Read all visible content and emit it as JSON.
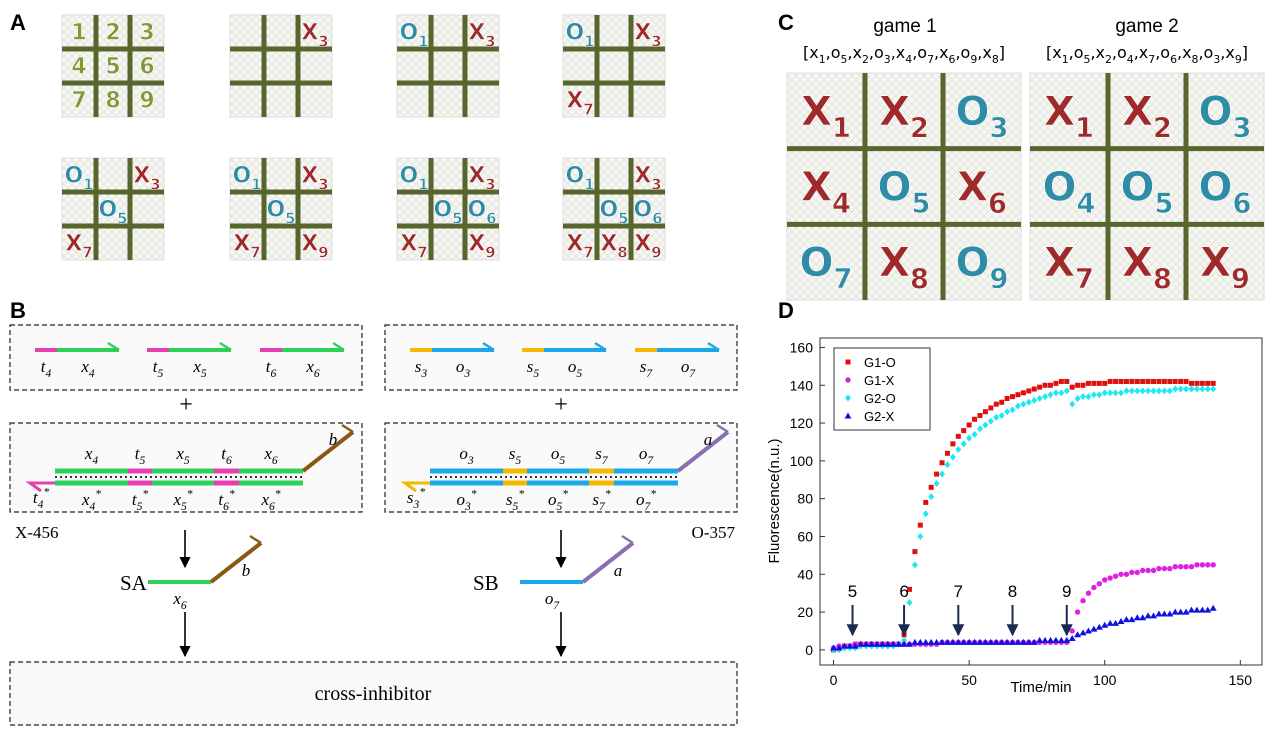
{
  "panel_labels": [
    "A",
    "B",
    "C",
    "D"
  ],
  "panel_a": {
    "boards": [
      [
        "1",
        "2",
        "3",
        "4",
        "5",
        "6",
        "7",
        "8",
        "9"
      ],
      [
        null,
        null,
        "X3",
        null,
        null,
        null,
        null,
        null,
        null
      ],
      [
        "O1",
        null,
        "X3",
        null,
        null,
        null,
        null,
        null,
        null
      ],
      [
        "O1",
        null,
        "X3",
        null,
        null,
        null,
        "X7",
        null,
        null
      ],
      [
        "O1",
        null,
        "X3",
        null,
        "O5",
        null,
        "X7",
        null,
        null
      ],
      [
        "O1",
        null,
        "X3",
        null,
        "O5",
        null,
        "X7",
        null,
        "X9"
      ],
      [
        "O1",
        null,
        "X3",
        null,
        "O5",
        "O6",
        "X7",
        null,
        "X9"
      ],
      [
        "O1",
        null,
        "X3",
        null,
        "O5",
        "O6",
        "X7",
        "X8",
        "X9"
      ]
    ]
  },
  "panel_b": {
    "left_strands": [
      {
        "toehold": "t4",
        "domain": "x4"
      },
      {
        "toehold": "t5",
        "domain": "x5"
      },
      {
        "toehold": "t6",
        "domain": "x6"
      }
    ],
    "right_strands": [
      {
        "toehold": "s3",
        "domain": "o3"
      },
      {
        "toehold": "s5",
        "domain": "o5"
      },
      {
        "toehold": "s7",
        "domain": "o7"
      }
    ],
    "plus": [
      "+",
      "+"
    ],
    "left_complex": {
      "top": [
        "x4",
        "t5",
        "x5",
        "t6",
        "x6"
      ],
      "bottom": [
        "t4*",
        "x4*",
        "t5*",
        "x5*",
        "t6*",
        "x6*"
      ],
      "tail": "b",
      "name": "X-456"
    },
    "right_complex": {
      "top": [
        "o3",
        "s5",
        "o5",
        "s7",
        "o7"
      ],
      "bottom": [
        "s3*",
        "o3*",
        "s5*",
        "o5*",
        "s7*",
        "o7*"
      ],
      "tail": "a",
      "name": "O-357"
    },
    "left_output": {
      "name": "SA",
      "domain": "x6",
      "tail": "b"
    },
    "right_output": {
      "name": "SB",
      "domain": "o7",
      "tail": "a"
    },
    "inhibitor": "cross-inhibitor"
  },
  "panel_c": {
    "games": [
      {
        "title": "game 1",
        "sequence": "[x1,o5,x2,o3,x4,o7,x6,o9,x8]",
        "board": [
          "X1",
          "X2",
          "O3",
          "X4",
          "O5",
          "X6",
          "O7",
          "X8",
          "O9"
        ]
      },
      {
        "title": "game 2",
        "sequence": "[x1,o5,x2,o4,x7,o6,x8,o3,x9]",
        "board": [
          "X1",
          "X2",
          "O3",
          "O4",
          "O5",
          "O6",
          "X7",
          "X8",
          "X9"
        ]
      }
    ]
  },
  "chart_data": {
    "type": "scatter",
    "xlabel": "Time/min",
    "ylabel": "Fluorescence(n.u.)",
    "xlim": [
      -5,
      158
    ],
    "ylim": [
      -8,
      165
    ],
    "xticks": [
      0,
      50,
      100,
      150
    ],
    "yticks": [
      0,
      20,
      40,
      60,
      80,
      100,
      120,
      140,
      160
    ],
    "legend": "upper left",
    "x": [
      0,
      2,
      4,
      6,
      8,
      10,
      12,
      14,
      16,
      18,
      20,
      22,
      24,
      26,
      28,
      30,
      32,
      34,
      36,
      38,
      40,
      42,
      44,
      46,
      48,
      50,
      52,
      54,
      56,
      58,
      60,
      62,
      64,
      66,
      68,
      70,
      72,
      74,
      76,
      78,
      80,
      82,
      84,
      86,
      88,
      90,
      92,
      94,
      96,
      98,
      100,
      102,
      104,
      106,
      108,
      110,
      112,
      114,
      116,
      118,
      120,
      122,
      124,
      126,
      128,
      130,
      132,
      134,
      136,
      138,
      140
    ],
    "series": [
      {
        "name": "G1-O",
        "color": "#e01010",
        "marker": "square",
        "values": [
          0,
          1,
          2,
          2,
          3,
          3,
          3,
          3,
          3,
          3,
          3,
          3,
          3,
          8,
          32,
          52,
          66,
          78,
          86,
          93,
          99,
          104,
          109,
          113,
          116,
          119,
          122,
          124,
          126,
          128,
          130,
          131,
          133,
          134,
          135,
          136,
          137,
          138,
          139,
          140,
          140,
          141,
          142,
          142,
          139,
          140,
          140,
          141,
          141,
          141,
          141,
          142,
          142,
          142,
          142,
          142,
          142,
          142,
          142,
          142,
          142,
          142,
          142,
          142,
          142,
          142,
          141,
          141,
          141,
          141,
          141
        ]
      },
      {
        "name": "G1-X",
        "color": "#e020e0",
        "marker": "circle",
        "values": [
          1,
          2,
          2,
          2,
          3,
          3,
          3,
          3,
          3,
          3,
          3,
          3,
          3,
          3,
          3,
          3,
          3,
          3,
          3,
          3,
          4,
          4,
          4,
          4,
          4,
          4,
          4,
          4,
          4,
          4,
          4,
          4,
          4,
          4,
          4,
          4,
          4,
          4,
          4,
          4,
          4,
          4,
          4,
          4,
          10,
          20,
          26,
          30,
          33,
          35,
          37,
          38,
          39,
          40,
          40,
          41,
          41,
          42,
          42,
          42,
          43,
          43,
          43,
          44,
          44,
          44,
          44,
          45,
          45,
          45,
          45
        ]
      },
      {
        "name": "G2-O",
        "color": "#20e8f0",
        "marker": "diamond",
        "values": [
          0,
          0,
          1,
          1,
          1,
          2,
          2,
          2,
          2,
          2,
          2,
          2,
          3,
          5,
          25,
          45,
          60,
          72,
          81,
          88,
          93,
          98,
          102,
          106,
          109,
          112,
          114,
          117,
          119,
          121,
          123,
          124,
          126,
          127,
          129,
          130,
          131,
          132,
          133,
          134,
          135,
          136,
          136,
          137,
          130,
          133,
          134,
          134,
          135,
          135,
          136,
          136,
          136,
          136,
          137,
          137,
          137,
          137,
          137,
          137,
          137,
          137,
          137,
          138,
          138,
          138,
          138,
          138,
          138,
          138,
          138
        ]
      },
      {
        "name": "G2-X",
        "color": "#1010e0",
        "marker": "triangle",
        "values": [
          1,
          1,
          2,
          2,
          2,
          3,
          3,
          3,
          3,
          3,
          3,
          3,
          3,
          3,
          3,
          4,
          4,
          4,
          4,
          4,
          4,
          4,
          4,
          4,
          4,
          4,
          4,
          4,
          4,
          4,
          4,
          4,
          4,
          4,
          4,
          4,
          4,
          4,
          5,
          5,
          5,
          5,
          5,
          5,
          6,
          8,
          9,
          10,
          11,
          12,
          13,
          14,
          14,
          15,
          16,
          16,
          17,
          17,
          18,
          18,
          19,
          19,
          19,
          20,
          20,
          20,
          21,
          21,
          21,
          21,
          22
        ]
      }
    ],
    "annotations": [
      {
        "text": "5",
        "x": 7
      },
      {
        "text": "6",
        "x": 26
      },
      {
        "text": "7",
        "x": 46
      },
      {
        "text": "8",
        "x": 66
      },
      {
        "text": "9",
        "x": 86
      }
    ]
  }
}
